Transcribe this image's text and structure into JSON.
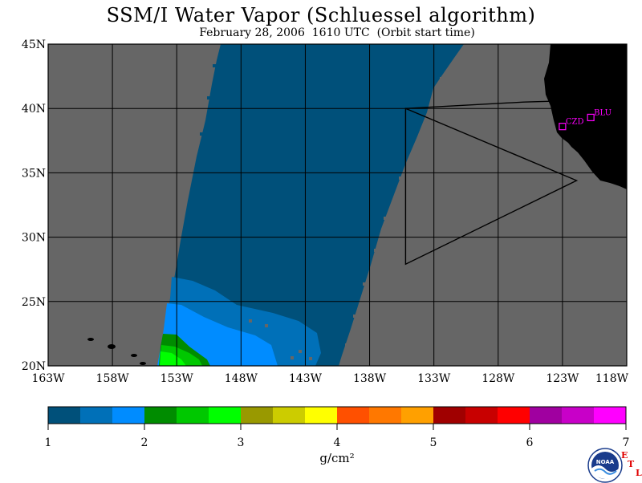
{
  "header": {
    "title": "SSM/I Water Vapor (Schluessel algorithm)",
    "subtitle": "February 28, 2006  1610 UTC  (Orbit start time)"
  },
  "map": {
    "lat_range": [
      20,
      45
    ],
    "lon_range": [
      -163,
      -118
    ],
    "lat_ticks": [
      {
        "value": 20,
        "label": "20N"
      },
      {
        "value": 25,
        "label": "25N"
      },
      {
        "value": 30,
        "label": "30N"
      },
      {
        "value": 35,
        "label": "35N"
      },
      {
        "value": 40,
        "label": "40N"
      },
      {
        "value": 45,
        "label": "45N"
      }
    ],
    "lon_ticks": [
      {
        "value": -163,
        "label": "163W"
      },
      {
        "value": -158,
        "label": "158W"
      },
      {
        "value": -153,
        "label": "153W"
      },
      {
        "value": -148,
        "label": "148W"
      },
      {
        "value": -143,
        "label": "143W"
      },
      {
        "value": -138,
        "label": "138W"
      },
      {
        "value": -133,
        "label": "133W"
      },
      {
        "value": -128,
        "label": "128W"
      },
      {
        "value": -123,
        "label": "123W"
      },
      {
        "value": -118,
        "label": "118W"
      }
    ],
    "grid": true,
    "colors": {
      "no_data": "#666666",
      "land": "#000000",
      "grid": "#000000",
      "stations": "#ff00ff",
      "swath_main": "#00507a",
      "swath_mid": "#0070b8",
      "swath_high": "#008cff",
      "green_dark": "#008c00",
      "green_mid": "#00c800",
      "green_bright": "#00ff00"
    },
    "stations": [
      {
        "name": "CZD",
        "lon": -123.0,
        "lat": 38.6
      },
      {
        "name": "BLU",
        "lon": -120.8,
        "lat": 39.3
      }
    ],
    "outline_polygon": [
      {
        "lon": -135.2,
        "lat": 40.0
      },
      {
        "lon": -135.2,
        "lat": 27.9
      },
      {
        "lon": -121.9,
        "lat": 34.4
      }
    ],
    "outline_top_edge": [
      {
        "lon": -135.2,
        "lat": 40.0
      },
      {
        "lon": -126.0,
        "lat": 40.5
      },
      {
        "lon": -122.5,
        "lat": 40.6
      }
    ]
  },
  "colorbar": {
    "colors": [
      "#00507a",
      "#0070b8",
      "#008cff",
      "#008c00",
      "#00c800",
      "#00ff00",
      "#999900",
      "#cccc00",
      "#ffff00",
      "#ff5000",
      "#ff7800",
      "#ffa000",
      "#a00000",
      "#c80000",
      "#ff0000",
      "#a000a0",
      "#c800c8",
      "#ff00ff"
    ],
    "min": 1,
    "max": 7,
    "tick_labels": [
      "1",
      "2",
      "3",
      "4",
      "5",
      "6",
      "7"
    ],
    "units": "g/cm²"
  },
  "logo": {
    "text": "NOAA",
    "etl": [
      "E",
      "T",
      "L"
    ]
  }
}
